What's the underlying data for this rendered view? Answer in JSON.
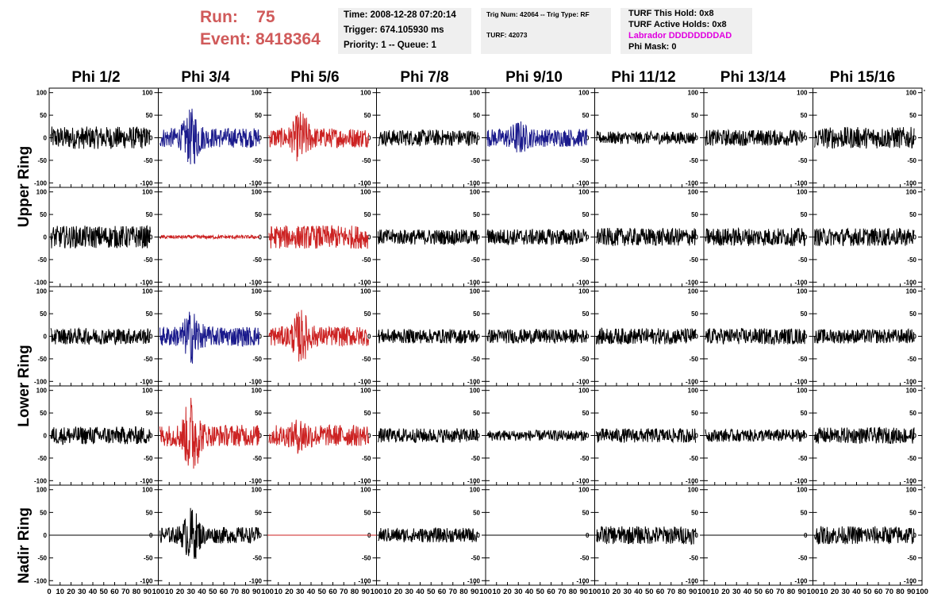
{
  "run": {
    "run_label": "Run:",
    "run_value": "75",
    "event_label": "Event:",
    "event_value": "8418364"
  },
  "info1": {
    "time": "Time: 2008-12-28 07:20:14",
    "trigger": "Trigger: 674.105930 ms",
    "priority": "Priority: 1 -- Queue: 1"
  },
  "info2": {
    "trig": "Trig Num: 42064 -- Trig Type: RF",
    "turf": "TURF: 42073"
  },
  "info3": {
    "hold": "TURF This Hold: 0x8",
    "active": "TURF Active Holds: 0x8",
    "labrador": "Labrador DDDDDDDDAD",
    "phimask": "Phi Mask: 0"
  },
  "columns": [
    "Phi 1/2",
    "Phi 3/4",
    "Phi 5/6",
    "Phi 7/8",
    "Phi 9/10",
    "Phi 11/12",
    "Phi 13/14",
    "Phi 15/16"
  ],
  "rings": {
    "upper": "Upper Ring",
    "lower": "Lower Ring",
    "nadir": "Nadir Ring"
  },
  "colors": {
    "black": "#000000",
    "blue": "#1a1a8c",
    "red": "#cc2222",
    "run_text": "#d05a5a",
    "labrador": "#e000e0",
    "box_bg": "#efefef"
  },
  "chart_data": {
    "type": "line",
    "x_ticks": [
      "0",
      "10",
      "20",
      "30",
      "40",
      "50",
      "60",
      "70",
      "80",
      "90",
      "100"
    ],
    "y_ticks": [
      "100",
      "50",
      "0",
      "-50",
      "-100"
    ],
    "xlim": [
      0,
      100
    ],
    "ylim": [
      -110,
      110
    ],
    "panels": [
      {
        "row": 0,
        "col": 0,
        "color": "black",
        "amp": 25,
        "burst": 0,
        "flat": false
      },
      {
        "row": 0,
        "col": 1,
        "color": "blue",
        "amp": 22,
        "burst": 45,
        "flat": false
      },
      {
        "row": 0,
        "col": 2,
        "color": "red",
        "amp": 22,
        "burst": 40,
        "flat": false
      },
      {
        "row": 0,
        "col": 3,
        "color": "black",
        "amp": 18,
        "burst": 0,
        "flat": false
      },
      {
        "row": 0,
        "col": 4,
        "color": "blue",
        "amp": 20,
        "burst": 20,
        "flat": false
      },
      {
        "row": 0,
        "col": 5,
        "color": "black",
        "amp": 14,
        "burst": 0,
        "flat": false
      },
      {
        "row": 0,
        "col": 6,
        "color": "black",
        "amp": 18,
        "burst": 0,
        "flat": false
      },
      {
        "row": 0,
        "col": 7,
        "color": "black",
        "amp": 24,
        "burst": 0,
        "flat": false
      },
      {
        "row": 1,
        "col": 0,
        "color": "black",
        "amp": 25,
        "burst": 0,
        "flat": false
      },
      {
        "row": 1,
        "col": 1,
        "color": "red",
        "amp": 4,
        "burst": 0,
        "flat": false
      },
      {
        "row": 1,
        "col": 2,
        "color": "red",
        "amp": 26,
        "burst": 0,
        "flat": false
      },
      {
        "row": 1,
        "col": 3,
        "color": "black",
        "amp": 17,
        "burst": 0,
        "flat": false
      },
      {
        "row": 1,
        "col": 4,
        "color": "black",
        "amp": 18,
        "burst": 0,
        "flat": false
      },
      {
        "row": 1,
        "col": 5,
        "color": "black",
        "amp": 20,
        "burst": 0,
        "flat": false
      },
      {
        "row": 1,
        "col": 6,
        "color": "black",
        "amp": 20,
        "burst": 0,
        "flat": false
      },
      {
        "row": 1,
        "col": 7,
        "color": "black",
        "amp": 20,
        "burst": 0,
        "flat": false
      },
      {
        "row": 2,
        "col": 0,
        "color": "black",
        "amp": 18,
        "burst": 0,
        "flat": false
      },
      {
        "row": 2,
        "col": 1,
        "color": "blue",
        "amp": 22,
        "burst": 40,
        "flat": false
      },
      {
        "row": 2,
        "col": 2,
        "color": "red",
        "amp": 22,
        "burst": 40,
        "flat": false
      },
      {
        "row": 2,
        "col": 3,
        "color": "black",
        "amp": 16,
        "burst": 0,
        "flat": false
      },
      {
        "row": 2,
        "col": 4,
        "color": "black",
        "amp": 16,
        "burst": 0,
        "flat": false
      },
      {
        "row": 2,
        "col": 5,
        "color": "black",
        "amp": 18,
        "burst": 0,
        "flat": false
      },
      {
        "row": 2,
        "col": 6,
        "color": "black",
        "amp": 18,
        "burst": 0,
        "flat": false
      },
      {
        "row": 2,
        "col": 7,
        "color": "black",
        "amp": 16,
        "burst": 0,
        "flat": false
      },
      {
        "row": 3,
        "col": 0,
        "color": "black",
        "amp": 20,
        "burst": 0,
        "flat": false
      },
      {
        "row": 3,
        "col": 1,
        "color": "red",
        "amp": 24,
        "burst": 70,
        "flat": false
      },
      {
        "row": 3,
        "col": 2,
        "color": "red",
        "amp": 24,
        "burst": 20,
        "flat": false
      },
      {
        "row": 3,
        "col": 3,
        "color": "black",
        "amp": 16,
        "burst": 0,
        "flat": false
      },
      {
        "row": 3,
        "col": 4,
        "color": "black",
        "amp": 12,
        "burst": 0,
        "flat": false
      },
      {
        "row": 3,
        "col": 5,
        "color": "black",
        "amp": 16,
        "burst": 0,
        "flat": false
      },
      {
        "row": 3,
        "col": 6,
        "color": "black",
        "amp": 14,
        "burst": 0,
        "flat": false
      },
      {
        "row": 3,
        "col": 7,
        "color": "black",
        "amp": 18,
        "burst": 0,
        "flat": false
      },
      {
        "row": 4,
        "col": 0,
        "color": "black",
        "amp": 0,
        "burst": 0,
        "flat": true
      },
      {
        "row": 4,
        "col": 1,
        "color": "black",
        "amp": 18,
        "burst": 45,
        "flat": false
      },
      {
        "row": 4,
        "col": 2,
        "color": "red",
        "amp": 0,
        "burst": 0,
        "flat": true
      },
      {
        "row": 4,
        "col": 3,
        "color": "black",
        "amp": 16,
        "burst": 0,
        "flat": false
      },
      {
        "row": 4,
        "col": 4,
        "color": "black",
        "amp": 0,
        "burst": 0,
        "flat": true
      },
      {
        "row": 4,
        "col": 5,
        "color": "black",
        "amp": 20,
        "burst": 0,
        "flat": false
      },
      {
        "row": 4,
        "col": 6,
        "color": "black",
        "amp": 0,
        "burst": 0,
        "flat": true
      },
      {
        "row": 4,
        "col": 7,
        "color": "black",
        "amp": 20,
        "burst": 0,
        "flat": false
      }
    ]
  }
}
